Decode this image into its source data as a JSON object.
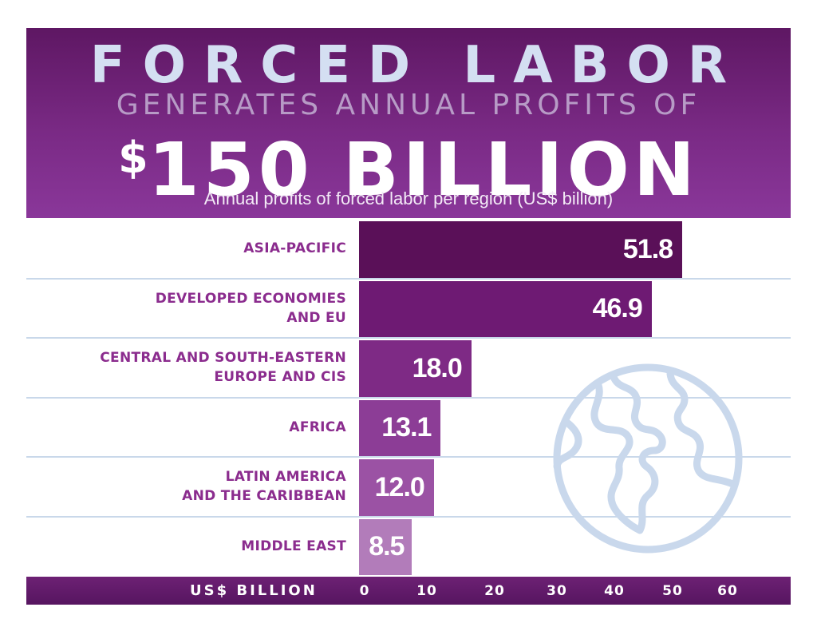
{
  "header": {
    "title_line1": "FORCED LABOR",
    "title_line2": "GENERATES ANNUAL PROFITS OF",
    "title_dollar": "$",
    "title_amount": "150 BILLION",
    "subtitle": "Annual profits of forced labor per region (US$ billion)"
  },
  "colors": {
    "header": "#7a2a85",
    "label_text": "#8b2c8e",
    "bars": [
      "#5a1058",
      "#6e1a73",
      "#7e2a85",
      "#8c3d96",
      "#9b52a4",
      "#b27cba"
    ],
    "gridline": "#c9d8ea",
    "globe": "#c9d8ec"
  },
  "icon": "globe-icon",
  "chart_data": {
    "type": "bar",
    "orientation": "horizontal",
    "title": "Annual profits of forced labor per region (US$ billion)",
    "categories": [
      [
        "ASIA-PACIFIC"
      ],
      [
        "DEVELOPED ECONOMIES",
        "AND EU"
      ],
      [
        "CENTRAL AND SOUTH-EASTERN",
        "EUROPE AND CIS"
      ],
      [
        "AFRICA"
      ],
      [
        "LATIN AMERICA",
        "AND THE CARIBBEAN"
      ],
      [
        "MIDDLE EAST"
      ]
    ],
    "values": [
      51.8,
      46.9,
      18.0,
      13.1,
      12.0,
      8.5
    ],
    "value_labels": [
      "51.8",
      "46.9",
      "18.0",
      "13.1",
      "12.0",
      "8.5"
    ],
    "xlabel": "US$ BILLION",
    "xticks": [
      0,
      10,
      20,
      30,
      40,
      50,
      60
    ],
    "xlim": [
      0,
      60
    ],
    "grid": false,
    "legend": "none"
  }
}
